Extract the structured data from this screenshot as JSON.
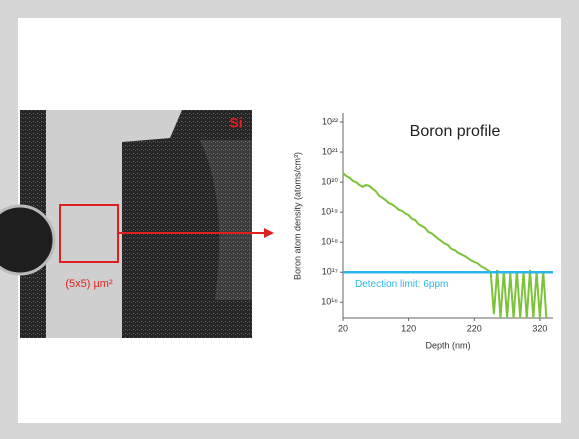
{
  "chart_data": {
    "type": "line",
    "title": "Boron profile",
    "x_label": "Depth (nm)",
    "y_label": "Boron atom density (atoms/cm³)",
    "log_y": true,
    "x": [
      20,
      25,
      30,
      35,
      40,
      45,
      50,
      55,
      60,
      65,
      70,
      75,
      80,
      85,
      90,
      95,
      100,
      105,
      110,
      115,
      120,
      125,
      130,
      135,
      140,
      145,
      150,
      155,
      160,
      165,
      170,
      175,
      180,
      185,
      190,
      195,
      200,
      205,
      210,
      215,
      220,
      225,
      230,
      235,
      240,
      245,
      250,
      255,
      260,
      265,
      270,
      275,
      280,
      285,
      290,
      295,
      300,
      305,
      310,
      315,
      320,
      325,
      330
    ],
    "series": [
      {
        "color": "#7cc23a",
        "values": [
          2e+20,
          1.6e+20,
          1.4e+20,
          1.1e+20,
          1e+20,
          8e+19,
          7e+19,
          8e+19,
          7.5e+19,
          6e+19,
          5e+19,
          3.5e+19,
          3e+19,
          2.5e+19,
          2e+19,
          1.8e+19,
          1.5e+19,
          1.2e+19,
          1.1e+19,
          9e+18,
          8e+18,
          6e+18,
          5.5e+18,
          4e+18,
          3.5e+18,
          3e+18,
          2.2e+18,
          2e+18,
          1.6e+18,
          1.3e+18,
          1.1e+18,
          9e+17,
          8e+17,
          6e+17,
          5.5e+17,
          4.5e+17,
          4e+17,
          3.5e+17,
          3e+17,
          2.5e+17,
          2.2e+17,
          2e+17,
          1.6e+17,
          1.4e+17,
          1.2e+17,
          1e+17,
          4000000000000000.0,
          1.2e+17,
          3000000000000000.0,
          1.1e+17,
          3000000000000000.0,
          9e+16,
          3000000000000000.0,
          1.1e+17,
          3000000000000000.0,
          1e+17,
          3000000000000000.0,
          1.2e+17,
          3000000000000000.0,
          1e+17,
          3000000000000000.0,
          1.1e+17,
          3000000000000000.0
        ]
      }
    ],
    "xlim": [
      20,
      340
    ],
    "xticks": [
      20,
      120,
      220,
      320
    ],
    "ylim": [
      3000000000000000.0,
      2e+22
    ],
    "yticks": [
      {
        "value": 1e+16,
        "label": "10¹⁶"
      },
      {
        "value": 1e+17,
        "label": "10¹⁷"
      },
      {
        "value": 1e+18,
        "label": "10¹⁸"
      },
      {
        "value": 1e+19,
        "label": "10¹⁹"
      },
      {
        "value": 1e+20,
        "label": "10²⁰"
      },
      {
        "value": 1e+21,
        "label": "10²¹"
      },
      {
        "value": 1e+22,
        "label": "10²²"
      }
    ],
    "reference_line": {
      "value": 1e+17,
      "label": "Detection limit: 6ppm",
      "color": "#29b6e8"
    }
  },
  "image": {
    "material_label": "Si",
    "area_label": "(5x5) µm²"
  }
}
